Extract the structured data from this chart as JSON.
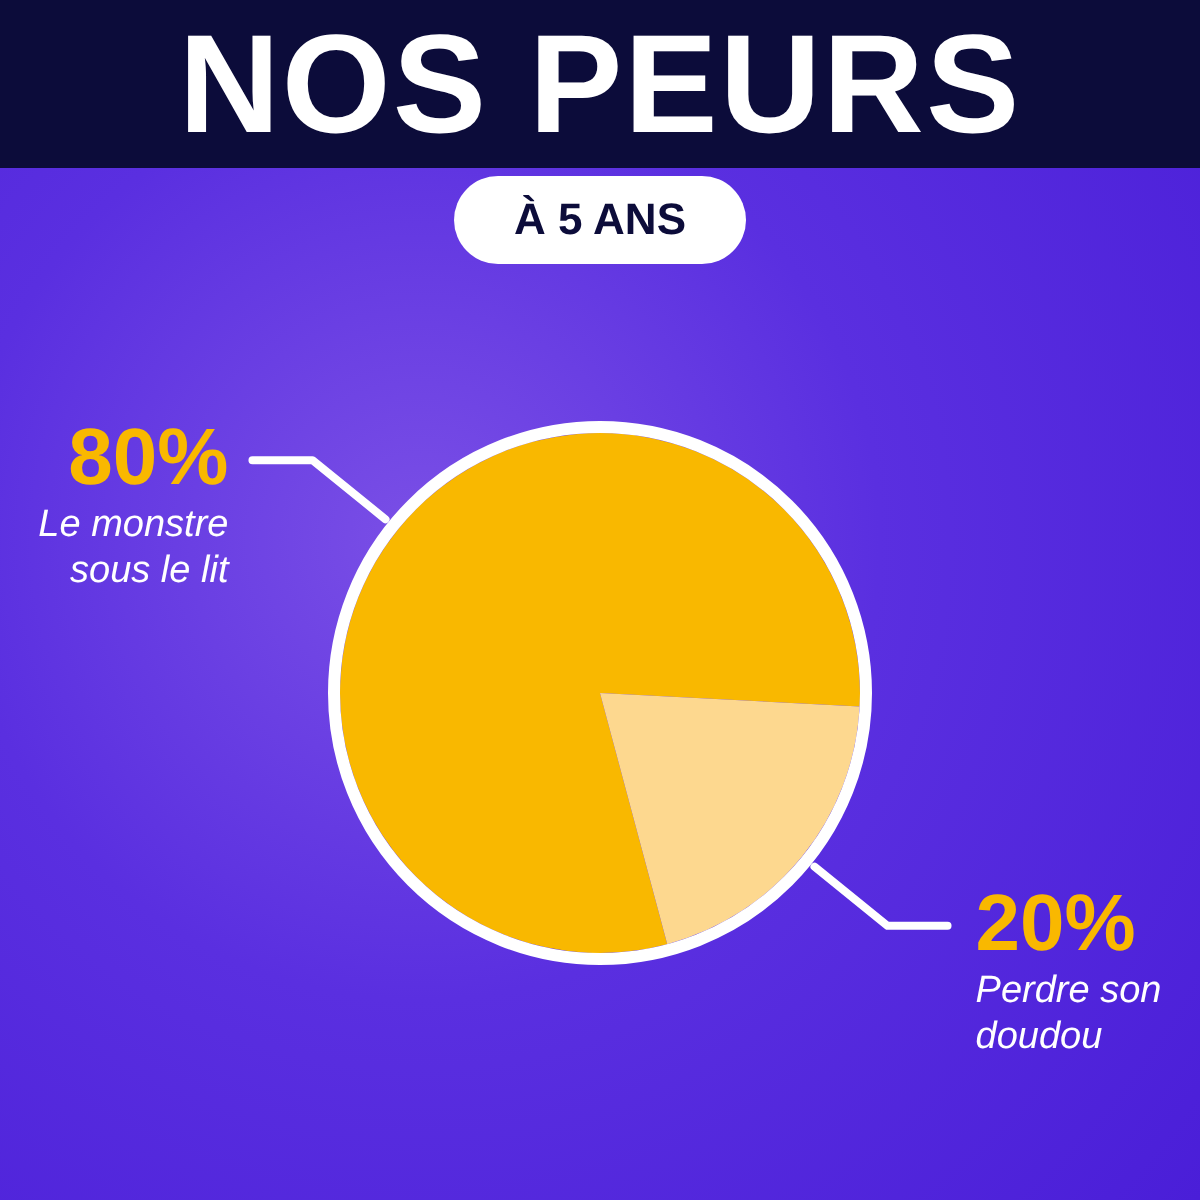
{
  "chart_data": {
    "type": "pie",
    "title": "NOS PEURS",
    "subtitle": "À 5 ANS",
    "categories": [
      "Le monstre sous le lit",
      "Perdre son doudou"
    ],
    "values": [
      80,
      20
    ],
    "colors": [
      "#f9b800",
      "#fdd88f"
    ],
    "value_labels": [
      "80%",
      "20%"
    ]
  }
}
